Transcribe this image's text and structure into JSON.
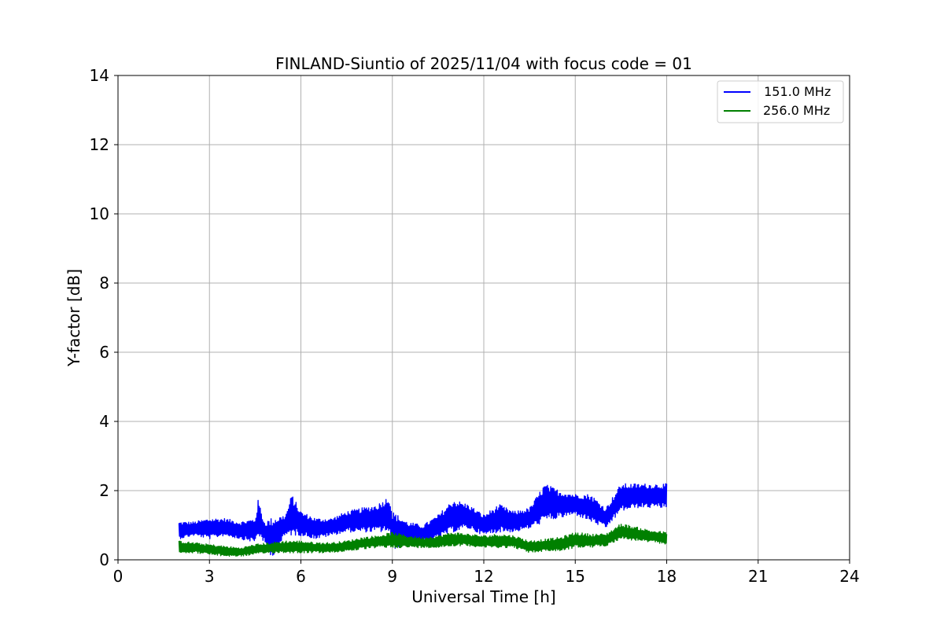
{
  "chart_data": {
    "type": "line",
    "title": "FINLAND-Siuntio of 2025/11/04 with focus code = 01",
    "xlabel": "Universal Time [h]",
    "ylabel": "Y-factor [dB]",
    "xlim": [
      0,
      24
    ],
    "ylim": [
      0,
      14
    ],
    "xticks": [
      0,
      3,
      6,
      9,
      12,
      15,
      18,
      21,
      24
    ],
    "yticks": [
      0,
      2,
      4,
      6,
      8,
      10,
      12,
      14
    ],
    "grid": true,
    "legend_position": "top-right",
    "series": [
      {
        "name": " 151.0 MHz",
        "color": "#0000ff",
        "x": [
          2.0,
          2.5,
          3.0,
          3.5,
          4.0,
          4.5,
          4.6,
          4.8,
          5.0,
          5.5,
          5.7,
          6.0,
          6.5,
          7.0,
          7.5,
          8.0,
          8.5,
          8.9,
          9.0,
          9.5,
          10.0,
          10.5,
          11.0,
          11.5,
          12.0,
          12.5,
          13.0,
          13.5,
          14.0,
          14.5,
          15.0,
          15.5,
          16.0,
          16.5,
          17.0,
          17.5,
          18.0
        ],
        "upper": [
          1.1,
          1.1,
          1.2,
          1.2,
          1.1,
          1.2,
          1.75,
          1.1,
          1.2,
          1.3,
          1.9,
          1.4,
          1.2,
          1.2,
          1.4,
          1.5,
          1.6,
          1.85,
          1.4,
          1.1,
          1.0,
          1.3,
          1.75,
          1.6,
          1.3,
          1.6,
          1.4,
          1.5,
          2.2,
          2.0,
          1.9,
          1.9,
          1.5,
          2.2,
          2.2,
          2.2,
          2.2
        ],
        "lower": [
          0.6,
          0.7,
          0.6,
          0.7,
          0.6,
          0.5,
          0.7,
          0.5,
          0.0,
          0.7,
          0.7,
          0.7,
          0.6,
          0.7,
          0.8,
          0.8,
          0.8,
          0.8,
          0.3,
          0.4,
          0.5,
          0.6,
          0.8,
          0.9,
          0.7,
          0.8,
          0.8,
          0.9,
          1.1,
          1.2,
          1.3,
          1.1,
          0.9,
          1.4,
          1.5,
          1.5,
          1.5
        ]
      },
      {
        "name": "256.0 MHz",
        "color": "#008000",
        "x": [
          2.0,
          2.5,
          3.0,
          3.5,
          4.0,
          4.5,
          5.0,
          5.5,
          6.0,
          6.5,
          7.0,
          7.5,
          8.0,
          8.5,
          9.0,
          9.5,
          10.0,
          10.5,
          11.0,
          11.5,
          12.0,
          12.5,
          13.0,
          13.5,
          14.0,
          14.5,
          15.0,
          15.5,
          16.0,
          16.5,
          17.0,
          17.5,
          18.0
        ],
        "upper": [
          0.55,
          0.5,
          0.45,
          0.4,
          0.35,
          0.45,
          0.5,
          0.55,
          0.55,
          0.5,
          0.5,
          0.55,
          0.65,
          0.7,
          0.8,
          0.7,
          0.65,
          0.7,
          0.8,
          0.75,
          0.7,
          0.75,
          0.7,
          0.55,
          0.6,
          0.65,
          0.8,
          0.75,
          0.75,
          1.05,
          0.95,
          0.85,
          0.8
        ],
        "lower": [
          0.2,
          0.2,
          0.15,
          0.1,
          0.1,
          0.15,
          0.2,
          0.2,
          0.2,
          0.2,
          0.2,
          0.25,
          0.3,
          0.35,
          0.35,
          0.35,
          0.35,
          0.35,
          0.4,
          0.4,
          0.35,
          0.35,
          0.35,
          0.2,
          0.25,
          0.25,
          0.35,
          0.35,
          0.4,
          0.6,
          0.55,
          0.5,
          0.45
        ]
      }
    ]
  }
}
